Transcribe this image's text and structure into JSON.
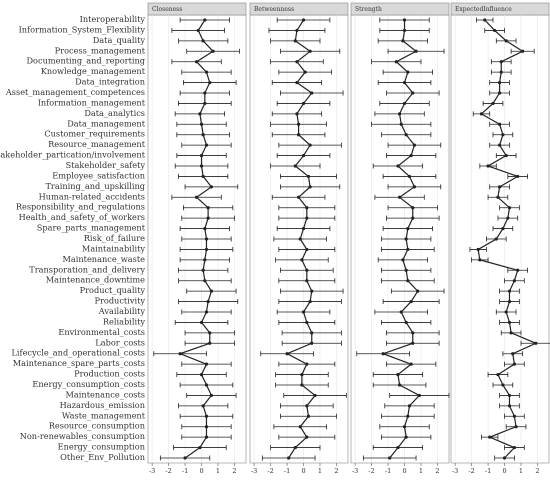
{
  "chart_data": {
    "type": "dot",
    "categories": [
      "Interoperability",
      "Information_System_Flexiblity",
      "Data_quality",
      "Process_management",
      "Documenting_and_reporting",
      "Knowledge_management",
      "Data_integration",
      "Asset_management_competences",
      "Information_management",
      "Data_analytics",
      "Data_management",
      "Customer_requirements",
      "Resource_management",
      "Stakeholder_partication/involvement",
      "Stakeholder_safety",
      "Employee_satisfaction",
      "Training_and_upskilling",
      "Human-related_accidents",
      "Responsibility_and_regulations",
      "Health_and_safety_of_workers",
      "Spare_parts_management",
      "Risk_of_failure",
      "Maintainability",
      "Maintenance_waste",
      "Transporation_and_delivery",
      "Maintenance_downtime",
      "Product_quality",
      "Productivity",
      "Availability",
      "Reliability",
      "Environmental_costs",
      "Labor_costs",
      "Lifecycle_and_operational_costs",
      "Maintenance_spare_parts_costs",
      "Production_costs",
      "Energy_consumption_costs",
      "Maintenance_costs",
      "Hazardous_emission",
      "Waste_management",
      "Resource_consumption",
      "Non-renewables_consumption",
      "Energy_consumption",
      "Other_Env_Pollution"
    ],
    "xlim": [
      -3.25,
      2.7
    ],
    "xticks": [
      -3,
      -2,
      -1,
      0,
      1,
      2
    ],
    "grid": true,
    "color": "#222222",
    "panels": [
      {
        "title": "Closeness",
        "values": [
          0.2,
          -0.2,
          0.1,
          0.7,
          -0.3,
          0.3,
          0.5,
          0.2,
          0.2,
          -0.1,
          0.0,
          0.1,
          0.3,
          0.0,
          0.0,
          0.1,
          0.6,
          -0.3,
          0.4,
          0.4,
          0.2,
          0.3,
          0.3,
          0.2,
          0.1,
          0.2,
          0.6,
          0.4,
          0.3,
          0.0,
          0.5,
          0.5,
          -1.3,
          0.3,
          0.0,
          0.3,
          0.6,
          0.1,
          0.3,
          0.3,
          0.3,
          -0.1,
          -1.0
        ],
        "errors": [
          1.5,
          1.6,
          1.5,
          1.6,
          1.5,
          1.5,
          1.6,
          1.5,
          1.6,
          1.5,
          1.5,
          1.6,
          1.5,
          1.5,
          1.6,
          1.5,
          1.6,
          1.5,
          1.5,
          1.6,
          1.5,
          1.5,
          1.6,
          1.5,
          1.5,
          1.6,
          1.5,
          1.8,
          1.5,
          1.6,
          1.5,
          1.5,
          1.6,
          1.5,
          1.5,
          1.6,
          1.5,
          1.5,
          1.6,
          1.5,
          1.5,
          1.6,
          1.5
        ]
      },
      {
        "title": "Betweenness",
        "values": [
          0.0,
          -0.4,
          -0.5,
          0.4,
          -0.4,
          0.1,
          -0.4,
          0.5,
          0.0,
          -0.4,
          -0.3,
          -0.3,
          0.4,
          0.0,
          -0.5,
          0.3,
          0.4,
          -0.3,
          0.2,
          0.2,
          0.0,
          -0.2,
          0.2,
          -0.1,
          0.2,
          0.2,
          0.5,
          0.4,
          0.0,
          0.2,
          0.5,
          0.5,
          -1.0,
          0.2,
          -0.1,
          -0.1,
          0.7,
          0.2,
          0.3,
          -0.2,
          0.2,
          -0.5,
          -0.9
        ],
        "errors": [
          1.6,
          1.7,
          1.5,
          1.8,
          1.6,
          1.6,
          1.5,
          1.9,
          1.6,
          1.5,
          1.7,
          1.6,
          1.9,
          1.6,
          1.5,
          1.7,
          1.8,
          1.6,
          1.7,
          1.7,
          1.6,
          1.6,
          1.7,
          1.6,
          1.6,
          1.7,
          1.9,
          1.9,
          1.6,
          1.7,
          1.8,
          1.8,
          1.6,
          1.7,
          1.6,
          1.6,
          1.9,
          1.6,
          1.7,
          1.6,
          1.7,
          1.5,
          1.6
        ]
      },
      {
        "title": "Strength",
        "values": [
          0.0,
          0.0,
          -0.1,
          0.7,
          -0.5,
          0.2,
          0.0,
          0.5,
          0.0,
          -0.3,
          -0.2,
          0.1,
          0.6,
          0.4,
          -0.4,
          0.3,
          0.6,
          -0.3,
          0.5,
          0.5,
          0.2,
          0.1,
          0.2,
          -0.1,
          0.1,
          0.2,
          0.8,
          0.4,
          -0.2,
          0.1,
          0.5,
          0.5,
          -1.3,
          0.4,
          -0.4,
          -0.3,
          0.9,
          0.3,
          0.2,
          0.0,
          0.1,
          -0.4,
          -0.9
        ],
        "errors": [
          1.5,
          1.5,
          1.5,
          1.7,
          1.5,
          1.5,
          1.6,
          1.6,
          1.5,
          1.5,
          1.8,
          1.5,
          1.6,
          1.5,
          1.5,
          1.6,
          1.6,
          1.5,
          1.5,
          1.6,
          1.5,
          1.5,
          1.6,
          1.5,
          1.5,
          1.6,
          1.6,
          1.7,
          1.6,
          1.5,
          1.6,
          1.6,
          1.6,
          1.5,
          1.5,
          1.6,
          1.8,
          1.5,
          1.6,
          1.5,
          1.5,
          1.5,
          1.6
        ]
      },
      {
        "title": "ExpectedInfluence",
        "values": [
          -1.2,
          -0.6,
          0.1,
          1.1,
          -0.2,
          -0.2,
          -0.3,
          -0.3,
          -0.7,
          -1.4,
          -0.3,
          -0.1,
          -0.3,
          0.1,
          -1.0,
          0.8,
          -0.3,
          -0.4,
          0.3,
          0.2,
          -0.1,
          -0.5,
          -1.6,
          -1.5,
          0.8,
          0.6,
          0.3,
          0.3,
          0.1,
          0.3,
          0.4,
          1.9,
          0.5,
          0.6,
          -0.4,
          -0.1,
          0.3,
          0.3,
          0.6,
          0.7,
          -0.9,
          0.6,
          0.0
        ],
        "errors": [
          0.5,
          0.6,
          0.6,
          0.7,
          0.6,
          0.6,
          0.6,
          0.6,
          0.6,
          0.5,
          0.6,
          0.6,
          0.6,
          0.6,
          0.5,
          0.6,
          0.6,
          0.6,
          0.6,
          0.6,
          0.6,
          0.6,
          0.5,
          0.5,
          0.6,
          0.6,
          0.6,
          0.6,
          0.6,
          0.6,
          0.6,
          0.9,
          0.6,
          0.6,
          0.6,
          0.6,
          0.6,
          0.6,
          0.6,
          0.6,
          0.5,
          0.6,
          0.6
        ]
      }
    ]
  }
}
